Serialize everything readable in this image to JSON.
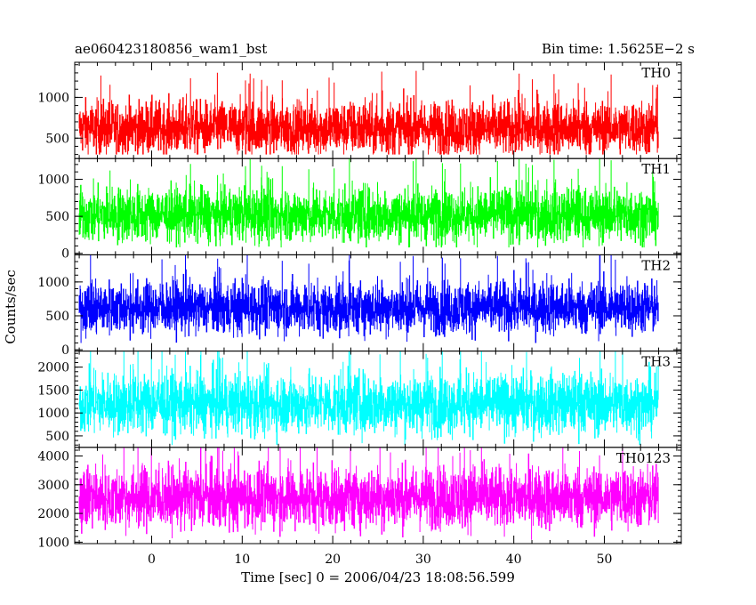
{
  "chart_data": {
    "type": "line",
    "title_left": "ae060423180856_wam1_bst",
    "title_right": "Bin time: 1.5625E−2 s",
    "xlabel": "Time [sec] 0 = 2006/04/23 18:08:56.599",
    "ylabel": "Counts/sec",
    "xlim": [
      -8.5,
      58.5
    ],
    "x_data_range": [
      -8,
      56
    ],
    "xticks": [
      0,
      10,
      20,
      30,
      40,
      50
    ],
    "grid": false,
    "panels": [
      {
        "name": "TH0",
        "color": "#ff0000",
        "ylim": [
          250,
          1430
        ],
        "yticks": [
          500,
          1000
        ],
        "mean": 620,
        "spread": 170,
        "min": 300,
        "max": 1430
      },
      {
        "name": "TH1",
        "color": "#00ff00",
        "ylim": [
          -20,
          1280
        ],
        "yticks": [
          0,
          500,
          1000
        ],
        "mean": 520,
        "spread": 190,
        "min": 80,
        "max": 1280
      },
      {
        "name": "TH2",
        "color": "#0000ff",
        "ylim": [
          -20,
          1400
        ],
        "yticks": [
          0,
          500,
          1000
        ],
        "mean": 620,
        "spread": 200,
        "min": 100,
        "max": 1400
      },
      {
        "name": "TH3",
        "color": "#00ffff",
        "ylim": [
          250,
          2350
        ],
        "yticks": [
          500,
          1000,
          1500,
          2000
        ],
        "mean": 1200,
        "spread": 340,
        "min": 300,
        "max": 2350
      },
      {
        "name": "TH0123",
        "color": "#ff00ff",
        "ylim": [
          950,
          4300
        ],
        "yticks": [
          1000,
          2000,
          3000,
          4000
        ],
        "mean": 2550,
        "spread": 550,
        "min": 1000,
        "max": 4300
      }
    ]
  }
}
